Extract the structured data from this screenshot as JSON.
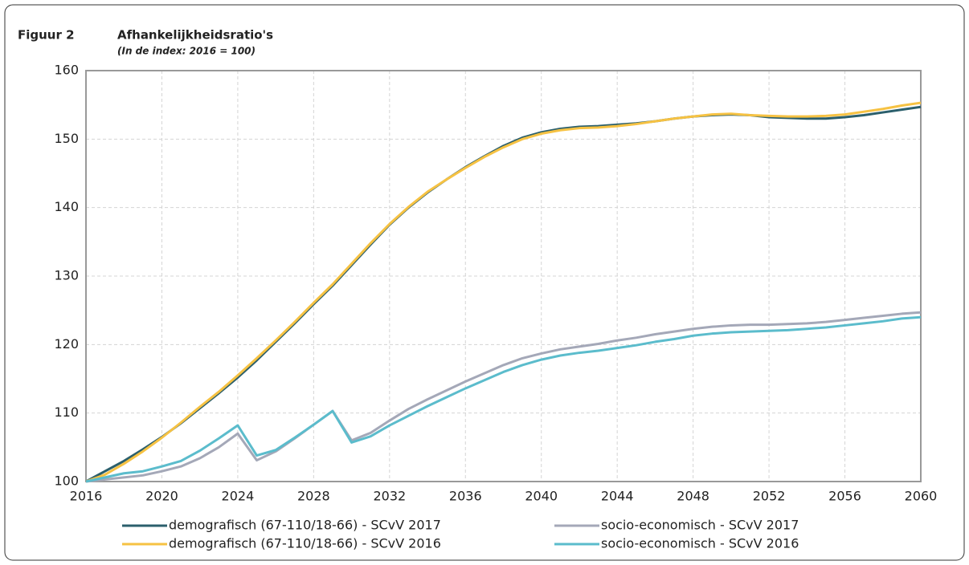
{
  "chart_data": {
    "type": "line",
    "label": "Figuur 2",
    "title": "Afhankelijkheidsratio's",
    "subtitle": "(In de index: 2016 = 100)",
    "x": [
      2016,
      2017,
      2018,
      2019,
      2020,
      2021,
      2022,
      2023,
      2024,
      2025,
      2026,
      2027,
      2028,
      2029,
      2030,
      2031,
      2032,
      2033,
      2034,
      2035,
      2036,
      2037,
      2038,
      2039,
      2040,
      2041,
      2042,
      2043,
      2044,
      2045,
      2046,
      2047,
      2048,
      2049,
      2050,
      2051,
      2052,
      2053,
      2054,
      2055,
      2056,
      2057,
      2058,
      2059,
      2060
    ],
    "series": [
      {
        "name": "demografisch (67-110/18-66) - SCvV 2017",
        "color": "#2b5f6c",
        "values": [
          100,
          101.5,
          103,
          104.7,
          106.5,
          108.5,
          110.7,
          112.9,
          115.2,
          117.7,
          120.4,
          123.1,
          125.9,
          128.6,
          131.6,
          134.6,
          137.5,
          140,
          142.2,
          144.1,
          145.9,
          147.5,
          149,
          150.2,
          151,
          151.5,
          151.8,
          151.9,
          152.1,
          152.3,
          152.6,
          153,
          153.3,
          153.5,
          153.6,
          153.5,
          153.2,
          153.1,
          153,
          153,
          153.2,
          153.5,
          153.9,
          154.3,
          154.7
        ]
      },
      {
        "name": "socio-economisch - SCvV 2017",
        "color": "#a4a8b8",
        "values": [
          100,
          100.3,
          100.6,
          100.9,
          101.5,
          102.2,
          103.4,
          105,
          107,
          103.1,
          104.4,
          106.3,
          108.3,
          110.3,
          106,
          107.1,
          108.9,
          110.6,
          112,
          113.3,
          114.6,
          115.8,
          117,
          118,
          118.7,
          119.3,
          119.7,
          120.1,
          120.6,
          121,
          121.5,
          121.9,
          122.3,
          122.6,
          122.8,
          122.9,
          122.9,
          123,
          123.1,
          123.3,
          123.6,
          123.9,
          124.2,
          124.5,
          124.7
        ]
      },
      {
        "name": "demografisch (67-110/18-66) - SCvV 2016",
        "color": "#f6c243",
        "values": [
          100,
          101,
          102.6,
          104.4,
          106.4,
          108.6,
          110.9,
          113.1,
          115.5,
          118,
          120.6,
          123.3,
          126.1,
          128.8,
          131.8,
          134.8,
          137.6,
          140.1,
          142.3,
          144.1,
          145.8,
          147.4,
          148.8,
          150,
          150.8,
          151.3,
          151.6,
          151.7,
          151.9,
          152.2,
          152.6,
          153,
          153.3,
          153.6,
          153.7,
          153.5,
          153.4,
          153.3,
          153.3,
          153.4,
          153.6,
          154,
          154.4,
          154.9,
          155.3
        ]
      },
      {
        "name": "socio-economisch - SCvV 2016",
        "color": "#5bbccc",
        "values": [
          100,
          100.6,
          101.2,
          101.5,
          102.2,
          103,
          104.5,
          106.3,
          108.2,
          103.8,
          104.6,
          106.4,
          108.3,
          110.3,
          105.7,
          106.6,
          108.2,
          109.6,
          111,
          112.3,
          113.6,
          114.8,
          116,
          117,
          117.8,
          118.4,
          118.8,
          119.1,
          119.5,
          119.9,
          120.4,
          120.8,
          121.3,
          121.6,
          121.8,
          121.9,
          122,
          122.1,
          122.3,
          122.5,
          122.8,
          123.1,
          123.4,
          123.8,
          124
        ]
      }
    ],
    "xlim": [
      2016,
      2060
    ],
    "xticks": [
      2016,
      2020,
      2024,
      2028,
      2032,
      2036,
      2040,
      2044,
      2048,
      2052,
      2056,
      2060
    ],
    "ylim": [
      100,
      160
    ],
    "yticks": [
      100,
      110,
      120,
      130,
      140,
      150,
      160
    ],
    "grid": true
  }
}
